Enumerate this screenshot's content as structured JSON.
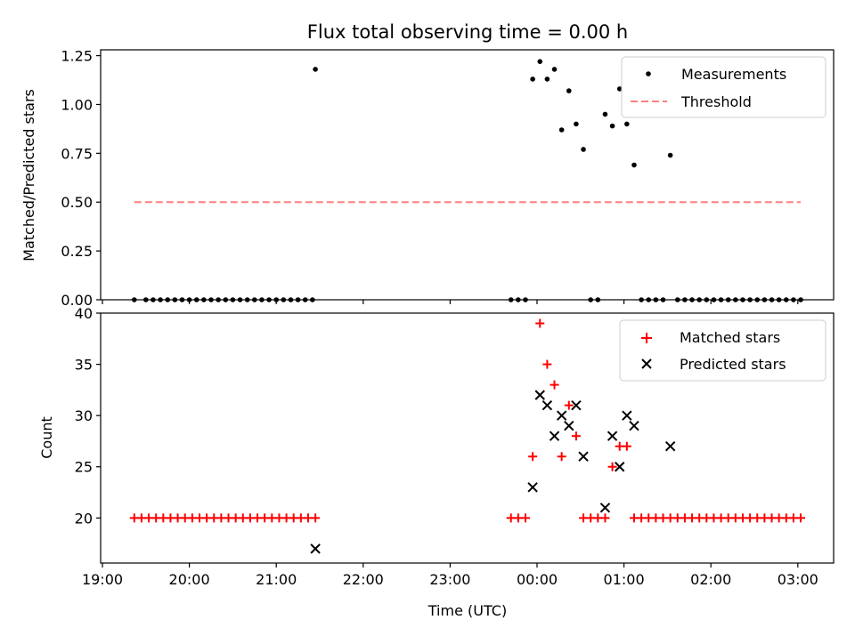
{
  "figure": {
    "title": "Flux total observing time = 0.00 h"
  },
  "chart_data": [
    {
      "type": "scatter",
      "ylabel": "Matched/Predicted stars",
      "xlabel": "",
      "ylim": [
        0,
        1.28
      ],
      "y_ticks": [
        0.0,
        0.25,
        0.5,
        0.75,
        1.0,
        1.25
      ],
      "y_tick_labels": [
        "0.00",
        "0.25",
        "0.50",
        "0.75",
        "1.00",
        "1.25"
      ],
      "grid": false,
      "legend_position": "top-right",
      "series": [
        {
          "name": "Measurements",
          "marker": "dot",
          "color": "#000000",
          "points": [
            [
              "19:22",
              0
            ],
            [
              "19:30",
              0
            ],
            [
              "19:35",
              0
            ],
            [
              "19:40",
              0
            ],
            [
              "19:45",
              0
            ],
            [
              "19:50",
              0
            ],
            [
              "19:55",
              0
            ],
            [
              "20:00",
              0
            ],
            [
              "20:05",
              0
            ],
            [
              "20:10",
              0
            ],
            [
              "20:15",
              0
            ],
            [
              "20:20",
              0
            ],
            [
              "20:25",
              0
            ],
            [
              "20:30",
              0
            ],
            [
              "20:35",
              0
            ],
            [
              "20:40",
              0
            ],
            [
              "20:45",
              0
            ],
            [
              "20:50",
              0
            ],
            [
              "20:55",
              0
            ],
            [
              "21:00",
              0
            ],
            [
              "21:05",
              0
            ],
            [
              "21:10",
              0
            ],
            [
              "21:15",
              0
            ],
            [
              "21:20",
              0
            ],
            [
              "21:25",
              0
            ],
            [
              "21:27",
              1.18
            ],
            [
              "23:42",
              0
            ],
            [
              "23:47",
              0
            ],
            [
              "23:52",
              0
            ],
            [
              "23:57",
              1.13
            ],
            [
              "00:02",
              1.22
            ],
            [
              "00:07",
              1.13
            ],
            [
              "00:12",
              1.18
            ],
            [
              "00:17",
              0.87
            ],
            [
              "00:22",
              1.07
            ],
            [
              "00:27",
              0.9
            ],
            [
              "00:32",
              0.77
            ],
            [
              "00:37",
              0
            ],
            [
              "00:42",
              0
            ],
            [
              "00:47",
              0.95
            ],
            [
              "00:52",
              0.89
            ],
            [
              "00:57",
              1.08
            ],
            [
              "01:02",
              0.9
            ],
            [
              "01:07",
              0.69
            ],
            [
              "01:12",
              0
            ],
            [
              "01:17",
              0
            ],
            [
              "01:22",
              0
            ],
            [
              "01:27",
              0
            ],
            [
              "01:32",
              0.74
            ],
            [
              "01:37",
              0
            ],
            [
              "01:42",
              0
            ],
            [
              "01:47",
              0
            ],
            [
              "01:52",
              0
            ],
            [
              "01:57",
              0
            ],
            [
              "02:02",
              0
            ],
            [
              "02:07",
              0
            ],
            [
              "02:12",
              0
            ],
            [
              "02:17",
              0
            ],
            [
              "02:22",
              0
            ],
            [
              "02:27",
              0
            ],
            [
              "02:32",
              0
            ],
            [
              "02:37",
              0
            ],
            [
              "02:42",
              0
            ],
            [
              "02:47",
              0
            ],
            [
              "02:52",
              0
            ],
            [
              "02:57",
              0
            ],
            [
              "03:02",
              0
            ]
          ]
        },
        {
          "name": "Threshold",
          "marker": "dashed-line",
          "color": "#ff8080",
          "points": [
            [
              "19:22",
              0.5
            ],
            [
              "03:02",
              0.5
            ]
          ]
        }
      ]
    },
    {
      "type": "scatter",
      "ylabel": "Count",
      "xlabel": "Time (UTC)",
      "ylim": [
        15.6,
        40
      ],
      "y_ticks": [
        20,
        25,
        30,
        35,
        40
      ],
      "y_tick_labels": [
        "20",
        "25",
        "30",
        "35",
        "40"
      ],
      "x_ticks": [
        "19:00",
        "20:00",
        "21:00",
        "22:00",
        "23:00",
        "00:00",
        "01:00",
        "02:00",
        "03:00"
      ],
      "grid": false,
      "legend_position": "top-right",
      "series": [
        {
          "name": "Matched stars",
          "marker": "plus",
          "color": "#ff0000",
          "points": [
            [
              "19:22",
              20
            ],
            [
              "19:27",
              20
            ],
            [
              "19:32",
              20
            ],
            [
              "19:37",
              20
            ],
            [
              "19:42",
              20
            ],
            [
              "19:47",
              20
            ],
            [
              "19:52",
              20
            ],
            [
              "19:57",
              20
            ],
            [
              "20:02",
              20
            ],
            [
              "20:07",
              20
            ],
            [
              "20:12",
              20
            ],
            [
              "20:17",
              20
            ],
            [
              "20:22",
              20
            ],
            [
              "20:27",
              20
            ],
            [
              "20:32",
              20
            ],
            [
              "20:37",
              20
            ],
            [
              "20:42",
              20
            ],
            [
              "20:47",
              20
            ],
            [
              "20:52",
              20
            ],
            [
              "20:57",
              20
            ],
            [
              "21:02",
              20
            ],
            [
              "21:07",
              20
            ],
            [
              "21:12",
              20
            ],
            [
              "21:17",
              20
            ],
            [
              "21:22",
              20
            ],
            [
              "21:27",
              20
            ],
            [
              "23:42",
              20
            ],
            [
              "23:47",
              20
            ],
            [
              "23:52",
              20
            ],
            [
              "23:57",
              26
            ],
            [
              "00:02",
              39
            ],
            [
              "00:07",
              35
            ],
            [
              "00:12",
              33
            ],
            [
              "00:17",
              26
            ],
            [
              "00:22",
              31
            ],
            [
              "00:27",
              28
            ],
            [
              "00:32",
              20
            ],
            [
              "00:37",
              20
            ],
            [
              "00:42",
              20
            ],
            [
              "00:47",
              20
            ],
            [
              "00:52",
              25
            ],
            [
              "00:57",
              27
            ],
            [
              "01:02",
              27
            ],
            [
              "01:07",
              20
            ],
            [
              "01:12",
              20
            ],
            [
              "01:17",
              20
            ],
            [
              "01:22",
              20
            ],
            [
              "01:27",
              20
            ],
            [
              "01:32",
              20
            ],
            [
              "01:37",
              20
            ],
            [
              "01:42",
              20
            ],
            [
              "01:47",
              20
            ],
            [
              "01:52",
              20
            ],
            [
              "01:57",
              20
            ],
            [
              "02:02",
              20
            ],
            [
              "02:07",
              20
            ],
            [
              "02:12",
              20
            ],
            [
              "02:17",
              20
            ],
            [
              "02:22",
              20
            ],
            [
              "02:27",
              20
            ],
            [
              "02:32",
              20
            ],
            [
              "02:37",
              20
            ],
            [
              "02:42",
              20
            ],
            [
              "02:47",
              20
            ],
            [
              "02:52",
              20
            ],
            [
              "02:57",
              20
            ],
            [
              "03:02",
              20
            ]
          ]
        },
        {
          "name": "Predicted stars",
          "marker": "x",
          "color": "#000000",
          "points": [
            [
              "21:27",
              17
            ],
            [
              "23:57",
              23
            ],
            [
              "00:02",
              32
            ],
            [
              "00:07",
              31
            ],
            [
              "00:12",
              28
            ],
            [
              "00:17",
              30
            ],
            [
              "00:22",
              29
            ],
            [
              "00:27",
              31
            ],
            [
              "00:32",
              26
            ],
            [
              "00:47",
              21
            ],
            [
              "00:52",
              28
            ],
            [
              "00:57",
              25
            ],
            [
              "01:02",
              30
            ],
            [
              "01:07",
              29
            ],
            [
              "01:32",
              27
            ]
          ]
        }
      ]
    }
  ]
}
